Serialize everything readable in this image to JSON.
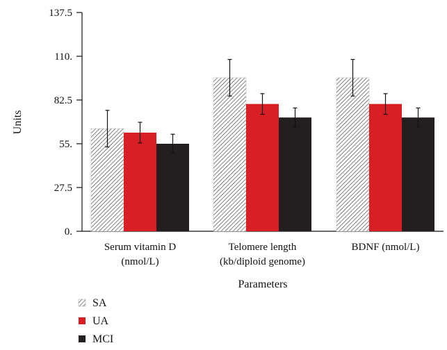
{
  "chart_data": {
    "type": "bar",
    "title": "",
    "xlabel": "Parameters",
    "ylabel": "Units",
    "ylim": [
      0,
      137.5
    ],
    "yticks": [
      "0.",
      "27.5",
      "55.",
      "82.5",
      "110.",
      "137.5"
    ],
    "grid": false,
    "legend_position": "bottom-left",
    "categories": [
      [
        "Serum vitamin D",
        "(nmol/L)"
      ],
      [
        "Telomere length",
        "(kb/diploid genome)"
      ],
      [
        "BDNF (nmol/L)"
      ]
    ],
    "series": [
      {
        "name": "SA",
        "values": [
          64.5,
          96.5,
          96.5
        ],
        "errors": [
          11.5,
          11.5,
          11.5
        ],
        "color": "#ffffff",
        "pattern": "hatch"
      },
      {
        "name": "UA",
        "values": [
          62,
          80,
          80
        ],
        "errors": [
          6.5,
          6.5,
          6.5
        ],
        "color": "#d91f26",
        "pattern": "solid"
      },
      {
        "name": "MCI",
        "values": [
          55,
          71.5,
          71.5
        ],
        "errors": [
          6,
          6,
          6
        ],
        "color": "#231f20",
        "pattern": "solid"
      }
    ]
  }
}
